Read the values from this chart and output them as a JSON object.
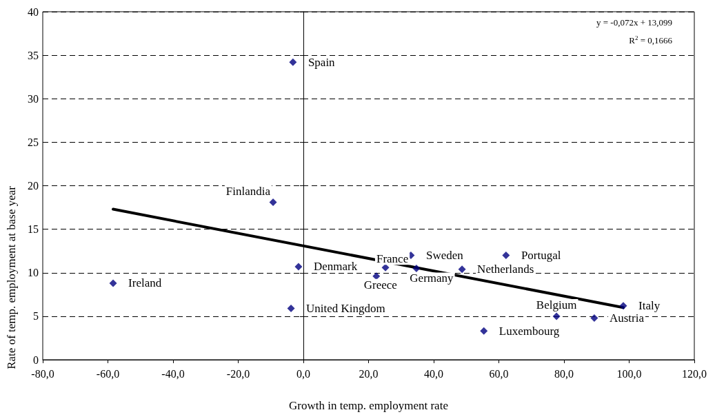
{
  "chart_data": {
    "type": "scatter",
    "xlabel": "Growth in temp. employment rate",
    "ylabel": "Rate of temp. employment at base year",
    "series": [
      {
        "color": "#000080",
        "marker": "diamond",
        "x": [
          -3.2,
          -9.3,
          -58.4,
          -1.5,
          -3.8,
          22.4,
          25.2,
          33.0,
          34.7,
          48.7,
          62.2,
          55.4,
          77.7,
          89.3,
          98.2
        ],
        "values": [
          34.2,
          18.1,
          8.8,
          10.7,
          5.9,
          9.6,
          10.6,
          12.0,
          10.5,
          10.4,
          12.0,
          3.3,
          5.0,
          4.8,
          6.2
        ]
      },
      {
        "type": "line",
        "color": "#000000",
        "marker": "none",
        "line_style": "solid",
        "x": [
          -58.4,
          98.2
        ],
        "values": [
          17.3,
          6.0
        ]
      }
    ],
    "xlim": [
      -80,
      120
    ],
    "xticks": [
      {
        "value": -80,
        "label": "-80,0"
      },
      {
        "value": -60,
        "label": "-60,0"
      },
      {
        "value": -40,
        "label": "-40,0"
      },
      {
        "value": -20,
        "label": "-20,0"
      },
      {
        "value": 0,
        "label": "0,0"
      },
      {
        "value": 20,
        "label": "20,0"
      },
      {
        "value": 40,
        "label": "40,0"
      },
      {
        "value": 60,
        "label": "60,0"
      },
      {
        "value": 80,
        "label": "80,0"
      },
      {
        "value": 100,
        "label": "100,0"
      },
      {
        "value": 120,
        "label": "120,0"
      }
    ],
    "ylim": [
      0,
      40
    ],
    "yticks": [
      0,
      5,
      10,
      15,
      20,
      25,
      30,
      35,
      40
    ],
    "grid": "y",
    "annotations": [
      {
        "text": "Spain",
        "x": -3.2,
        "y": 34.2
      },
      {
        "text": "Finlandia",
        "x": -9.3,
        "y": 18.1
      },
      {
        "text": "Ireland",
        "x": -58.4,
        "y": 8.8
      },
      {
        "text": "Denmark",
        "x": -1.5,
        "y": 10.7
      },
      {
        "text": "United Kingdom",
        "x": -3.8,
        "y": 5.9
      },
      {
        "text": "Greece",
        "x": 22.4,
        "y": 9.6
      },
      {
        "text": "France",
        "x": 25.2,
        "y": 10.6
      },
      {
        "text": "Sweden",
        "x": 33.0,
        "y": 12.0
      },
      {
        "text": "Germany",
        "x": 34.7,
        "y": 10.5
      },
      {
        "text": "Netherlands",
        "x": 48.7,
        "y": 10.4
      },
      {
        "text": "Portugal",
        "x": 62.2,
        "y": 12.0
      },
      {
        "text": "Luxembourg",
        "x": 55.4,
        "y": 3.3
      },
      {
        "text": "Belgium",
        "x": 77.7,
        "y": 5.0
      },
      {
        "text": "Austria",
        "x": 89.3,
        "y": 4.8
      },
      {
        "text": "Italy",
        "x": 98.2,
        "y": 6.2
      },
      "y = -0,072x + 13,099",
      "R$^{2}$ = 0,1666"
    ]
  }
}
